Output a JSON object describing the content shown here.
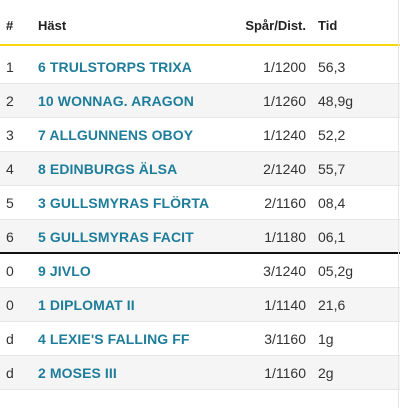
{
  "table": {
    "headers": {
      "pos": "#",
      "horse": "Häst",
      "dist": "Spår/Dist.",
      "tid": "Tid"
    },
    "rows": [
      {
        "pos": "1",
        "horse": "6 TRULSTORPS TRIXA",
        "dist": "1/1200",
        "tid": "56,3"
      },
      {
        "pos": "2",
        "horse": "10 WONNAG. ARAGON",
        "dist": "1/1260",
        "tid": "48,9g"
      },
      {
        "pos": "3",
        "horse": "7 ALLGUNNENS OBOY",
        "dist": "1/1240",
        "tid": "52,2"
      },
      {
        "pos": "4",
        "horse": "8 EDINBURGS ÄLSA",
        "dist": "2/1240",
        "tid": "55,7"
      },
      {
        "pos": "5",
        "horse": "3 GULLSMYRAS FLÖRTA",
        "dist": "2/1160",
        "tid": "08,4"
      },
      {
        "pos": "6",
        "horse": "5 GULLSMYRAS FACIT",
        "dist": "1/1180",
        "tid": "06,1"
      },
      {
        "pos": "0",
        "horse": "9 JIVLO",
        "dist": "3/1240",
        "tid": "05,2g"
      },
      {
        "pos": "0",
        "horse": "1 DIPLOMAT II",
        "dist": "1/1140",
        "tid": "21,6"
      },
      {
        "pos": "d",
        "horse": "4 LEXIE'S FALLING FF",
        "dist": "3/1160",
        "tid": "1g"
      },
      {
        "pos": "d",
        "horse": "2 MOSES III",
        "dist": "1/1160",
        "tid": "2g"
      }
    ]
  },
  "colors": {
    "accent_line": "#f5d90a",
    "horse_link": "#1e7d9a",
    "separator": "#111111"
  }
}
